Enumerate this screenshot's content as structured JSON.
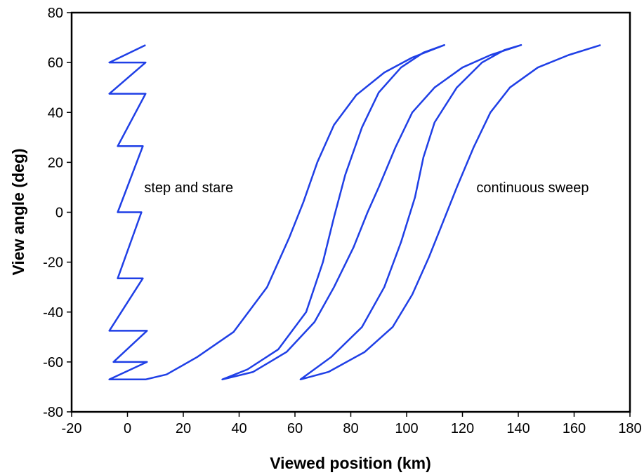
{
  "chart_data": {
    "type": "line",
    "title": "",
    "xlabel": "Viewed position (km)",
    "ylabel": "View angle (deg)",
    "xlim": [
      -20,
      180
    ],
    "ylim": [
      -80,
      80
    ],
    "x_ticks": [
      -20,
      0,
      20,
      40,
      60,
      80,
      100,
      120,
      140,
      160,
      180
    ],
    "y_ticks": [
      -80,
      -60,
      -40,
      -20,
      0,
      20,
      40,
      60,
      80
    ],
    "grid": false,
    "legend": "none",
    "line_color": "#1f3fe6",
    "annotations": [
      {
        "text": "step and stare",
        "x": 6,
        "y": 8
      },
      {
        "text": "continuous sweep",
        "x": 125,
        "y": 8
      }
    ],
    "series": [
      {
        "points": [
          [
            6.5,
            67
          ],
          [
            -6.5,
            60
          ],
          [
            6.5,
            60
          ],
          [
            -6.5,
            47.5
          ],
          [
            6.5,
            47.5
          ],
          [
            -3.5,
            26.5
          ],
          [
            5.5,
            26.5
          ],
          [
            -3.5,
            0
          ],
          [
            5.0,
            0
          ],
          [
            -3.5,
            -26.5
          ],
          [
            5.5,
            -26.5
          ],
          [
            -6.5,
            -47.5
          ],
          [
            7.0,
            -47.5
          ],
          [
            -5.0,
            -60
          ],
          [
            7.0,
            -60
          ],
          [
            -6.5,
            -67
          ],
          [
            6.5,
            -67
          ],
          [
            14,
            -65
          ],
          [
            25,
            -58
          ],
          [
            38,
            -48
          ],
          [
            50,
            -30
          ],
          [
            58,
            -10
          ],
          [
            63,
            4
          ],
          [
            68,
            20
          ],
          [
            74,
            35
          ],
          [
            82,
            47
          ],
          [
            92,
            56
          ],
          [
            102,
            62
          ],
          [
            113.5,
            67
          ],
          [
            106,
            64
          ],
          [
            98,
            58
          ],
          [
            90,
            48
          ],
          [
            84,
            34
          ],
          [
            78,
            15
          ],
          [
            74,
            -2
          ],
          [
            70,
            -20
          ],
          [
            64,
            -40
          ],
          [
            54,
            -55
          ],
          [
            43,
            -63
          ],
          [
            34,
            -67
          ],
          [
            45,
            -64
          ],
          [
            57,
            -56
          ],
          [
            67,
            -44
          ],
          [
            74,
            -30
          ],
          [
            81,
            -14
          ],
          [
            86,
            0
          ],
          [
            90,
            10
          ],
          [
            96,
            26
          ],
          [
            102,
            40
          ],
          [
            110,
            50
          ],
          [
            120,
            58
          ],
          [
            130,
            63
          ],
          [
            141,
            67
          ],
          [
            135,
            65
          ],
          [
            127,
            60
          ],
          [
            118,
            50
          ],
          [
            110,
            36
          ],
          [
            106,
            22
          ],
          [
            103,
            6
          ],
          [
            98,
            -12
          ],
          [
            92,
            -30
          ],
          [
            84,
            -46
          ],
          [
            73,
            -58
          ],
          [
            62,
            -67
          ],
          [
            72,
            -64
          ],
          [
            85,
            -56
          ],
          [
            95,
            -46
          ],
          [
            102,
            -33
          ],
          [
            108,
            -18
          ],
          [
            113,
            -4
          ],
          [
            118,
            10
          ],
          [
            124,
            26
          ],
          [
            130,
            40
          ],
          [
            137,
            50
          ],
          [
            147,
            58
          ],
          [
            158,
            63
          ],
          [
            169.5,
            67
          ]
        ]
      }
    ]
  }
}
